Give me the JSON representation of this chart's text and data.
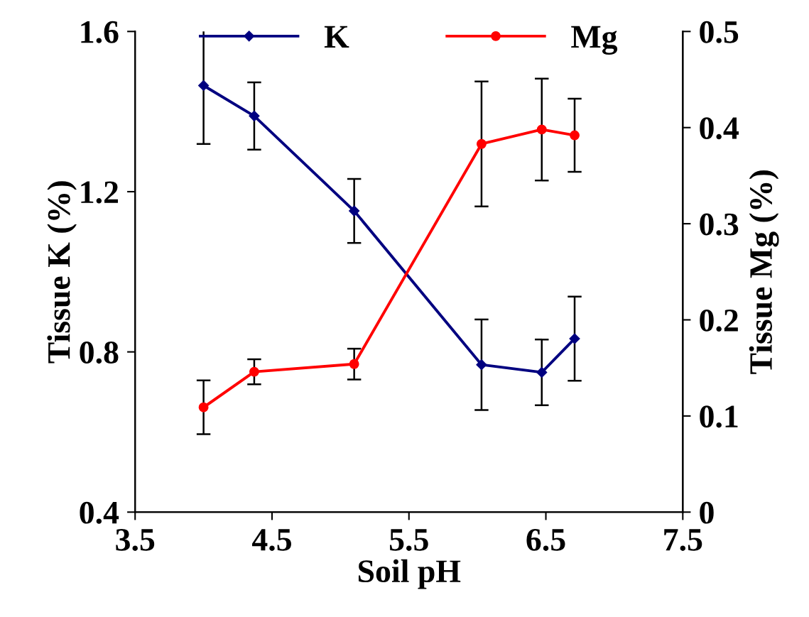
{
  "chart_data": {
    "type": "line",
    "xlabel": "Soil pH",
    "ylabel": "Tissue K (%)",
    "y2label": "Tissue Mg (%)",
    "x": [
      4.0,
      4.37,
      5.1,
      6.03,
      6.47,
      6.71
    ],
    "series": [
      {
        "name": "K",
        "color": "#000080",
        "marker": "diamond",
        "values": [
          1.465,
          1.389,
          1.152,
          0.768,
          0.749,
          0.833
        ],
        "errors": [
          0.146,
          0.084,
          0.08,
          0.113,
          0.082,
          0.105
        ]
      },
      {
        "name": "Mg",
        "color": "#ff0000",
        "marker": "circle",
        "axis": "y2",
        "values": [
          0.109,
          0.146,
          0.154,
          0.383,
          0.398,
          0.392
        ],
        "errors": [
          0.028,
          0.013,
          0.016,
          0.065,
          0.053,
          0.038
        ]
      }
    ],
    "xlim": [
      3.5,
      7.5
    ],
    "xticks": [
      3.5,
      4.5,
      5.5,
      6.5,
      7.5
    ],
    "ylim": [
      0.4,
      1.6
    ],
    "yticks": [
      0.4,
      0.8,
      1.2,
      1.6
    ],
    "y2lim": [
      0,
      0.5
    ],
    "y2ticks": [
      0,
      0.1,
      0.2,
      0.3,
      0.4,
      0.5
    ],
    "grid": false,
    "legend": "top",
    "line_style": "solid"
  }
}
